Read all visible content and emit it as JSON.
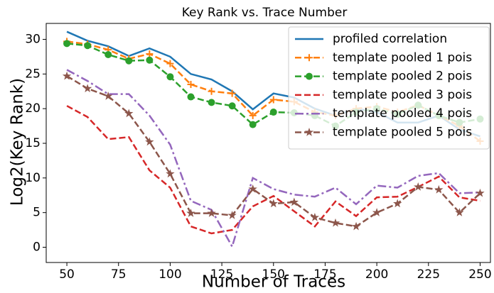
{
  "chart_data": {
    "type": "line",
    "title": "Key Rank vs. Trace Number",
    "xlabel": "Number of Traces",
    "ylabel": "Log2(Key Rank)",
    "x": [
      50,
      60,
      70,
      80,
      90,
      100,
      110,
      120,
      130,
      140,
      150,
      160,
      170,
      180,
      190,
      200,
      210,
      220,
      230,
      240,
      250
    ],
    "xlim": [
      40,
      255
    ],
    "xticks": [
      50,
      75,
      100,
      125,
      150,
      175,
      200,
      225,
      250
    ],
    "ylim": [
      -2.2,
      32.3
    ],
    "yticks": [
      0,
      5,
      10,
      15,
      20,
      25,
      30
    ],
    "legend": "upper right",
    "series": [
      {
        "name": "profiled correlation",
        "color": "#1f77b4",
        "linestyle": "solid",
        "marker": "none",
        "values": [
          31.1,
          29.8,
          29,
          27.6,
          28.7,
          27.5,
          25,
          24.2,
          22.5,
          19.9,
          22.2,
          21.6,
          20,
          19,
          20,
          19.5,
          18,
          18,
          19,
          17,
          16
        ]
      },
      {
        "name": "template pooled 1 pois",
        "color": "#ff7f0e",
        "linestyle": "dashed",
        "marker": "plus",
        "values": [
          29.7,
          29.3,
          28.5,
          27.2,
          27.9,
          26.5,
          23.5,
          22.5,
          22.2,
          19,
          21.3,
          21,
          19.5,
          19,
          20,
          20.3,
          19.5,
          20.5,
          19,
          17.5,
          15.3
        ]
      },
      {
        "name": "template pooled 2 pois",
        "color": "#2ca02c",
        "linestyle": "dashed",
        "marker": "circle",
        "values": [
          29.4,
          29.1,
          27.8,
          26.9,
          27,
          24.6,
          21.7,
          20.9,
          20.4,
          17.7,
          19.5,
          19.4,
          19,
          17.5,
          19.5,
          20,
          19.2,
          20.5,
          19,
          18,
          18.5
        ]
      },
      {
        "name": "template pooled 3 pois",
        "color": "#d62728",
        "linestyle": "dashed",
        "marker": "none",
        "values": [
          20.4,
          18.8,
          15.6,
          15.9,
          11.1,
          8.6,
          3,
          2,
          2.5,
          5.9,
          7.4,
          5.2,
          3,
          6.6,
          4.5,
          7.2,
          7.3,
          8.7,
          10.2,
          7.2,
          6.7
        ]
      },
      {
        "name": "template pooled 4 pois",
        "color": "#9467bd",
        "linestyle": "dashdot",
        "marker": "none",
        "values": [
          25.6,
          24,
          22.1,
          22.1,
          19,
          14.8,
          6.7,
          5.4,
          0.1,
          10,
          8.4,
          7.6,
          7.3,
          8.6,
          6.2,
          8.9,
          8.6,
          10.3,
          10.7,
          7.8,
          7.9
        ]
      },
      {
        "name": "template pooled 5 pois",
        "color": "#8c564b",
        "linestyle": "dashed",
        "marker": "star",
        "values": [
          24.7,
          22.9,
          21.8,
          19.3,
          15.2,
          10.6,
          4.9,
          4.9,
          4.6,
          8.4,
          6.3,
          6.5,
          4.3,
          3.5,
          3,
          5,
          6.3,
          8.7,
          8.3,
          5,
          7.8
        ]
      }
    ]
  }
}
